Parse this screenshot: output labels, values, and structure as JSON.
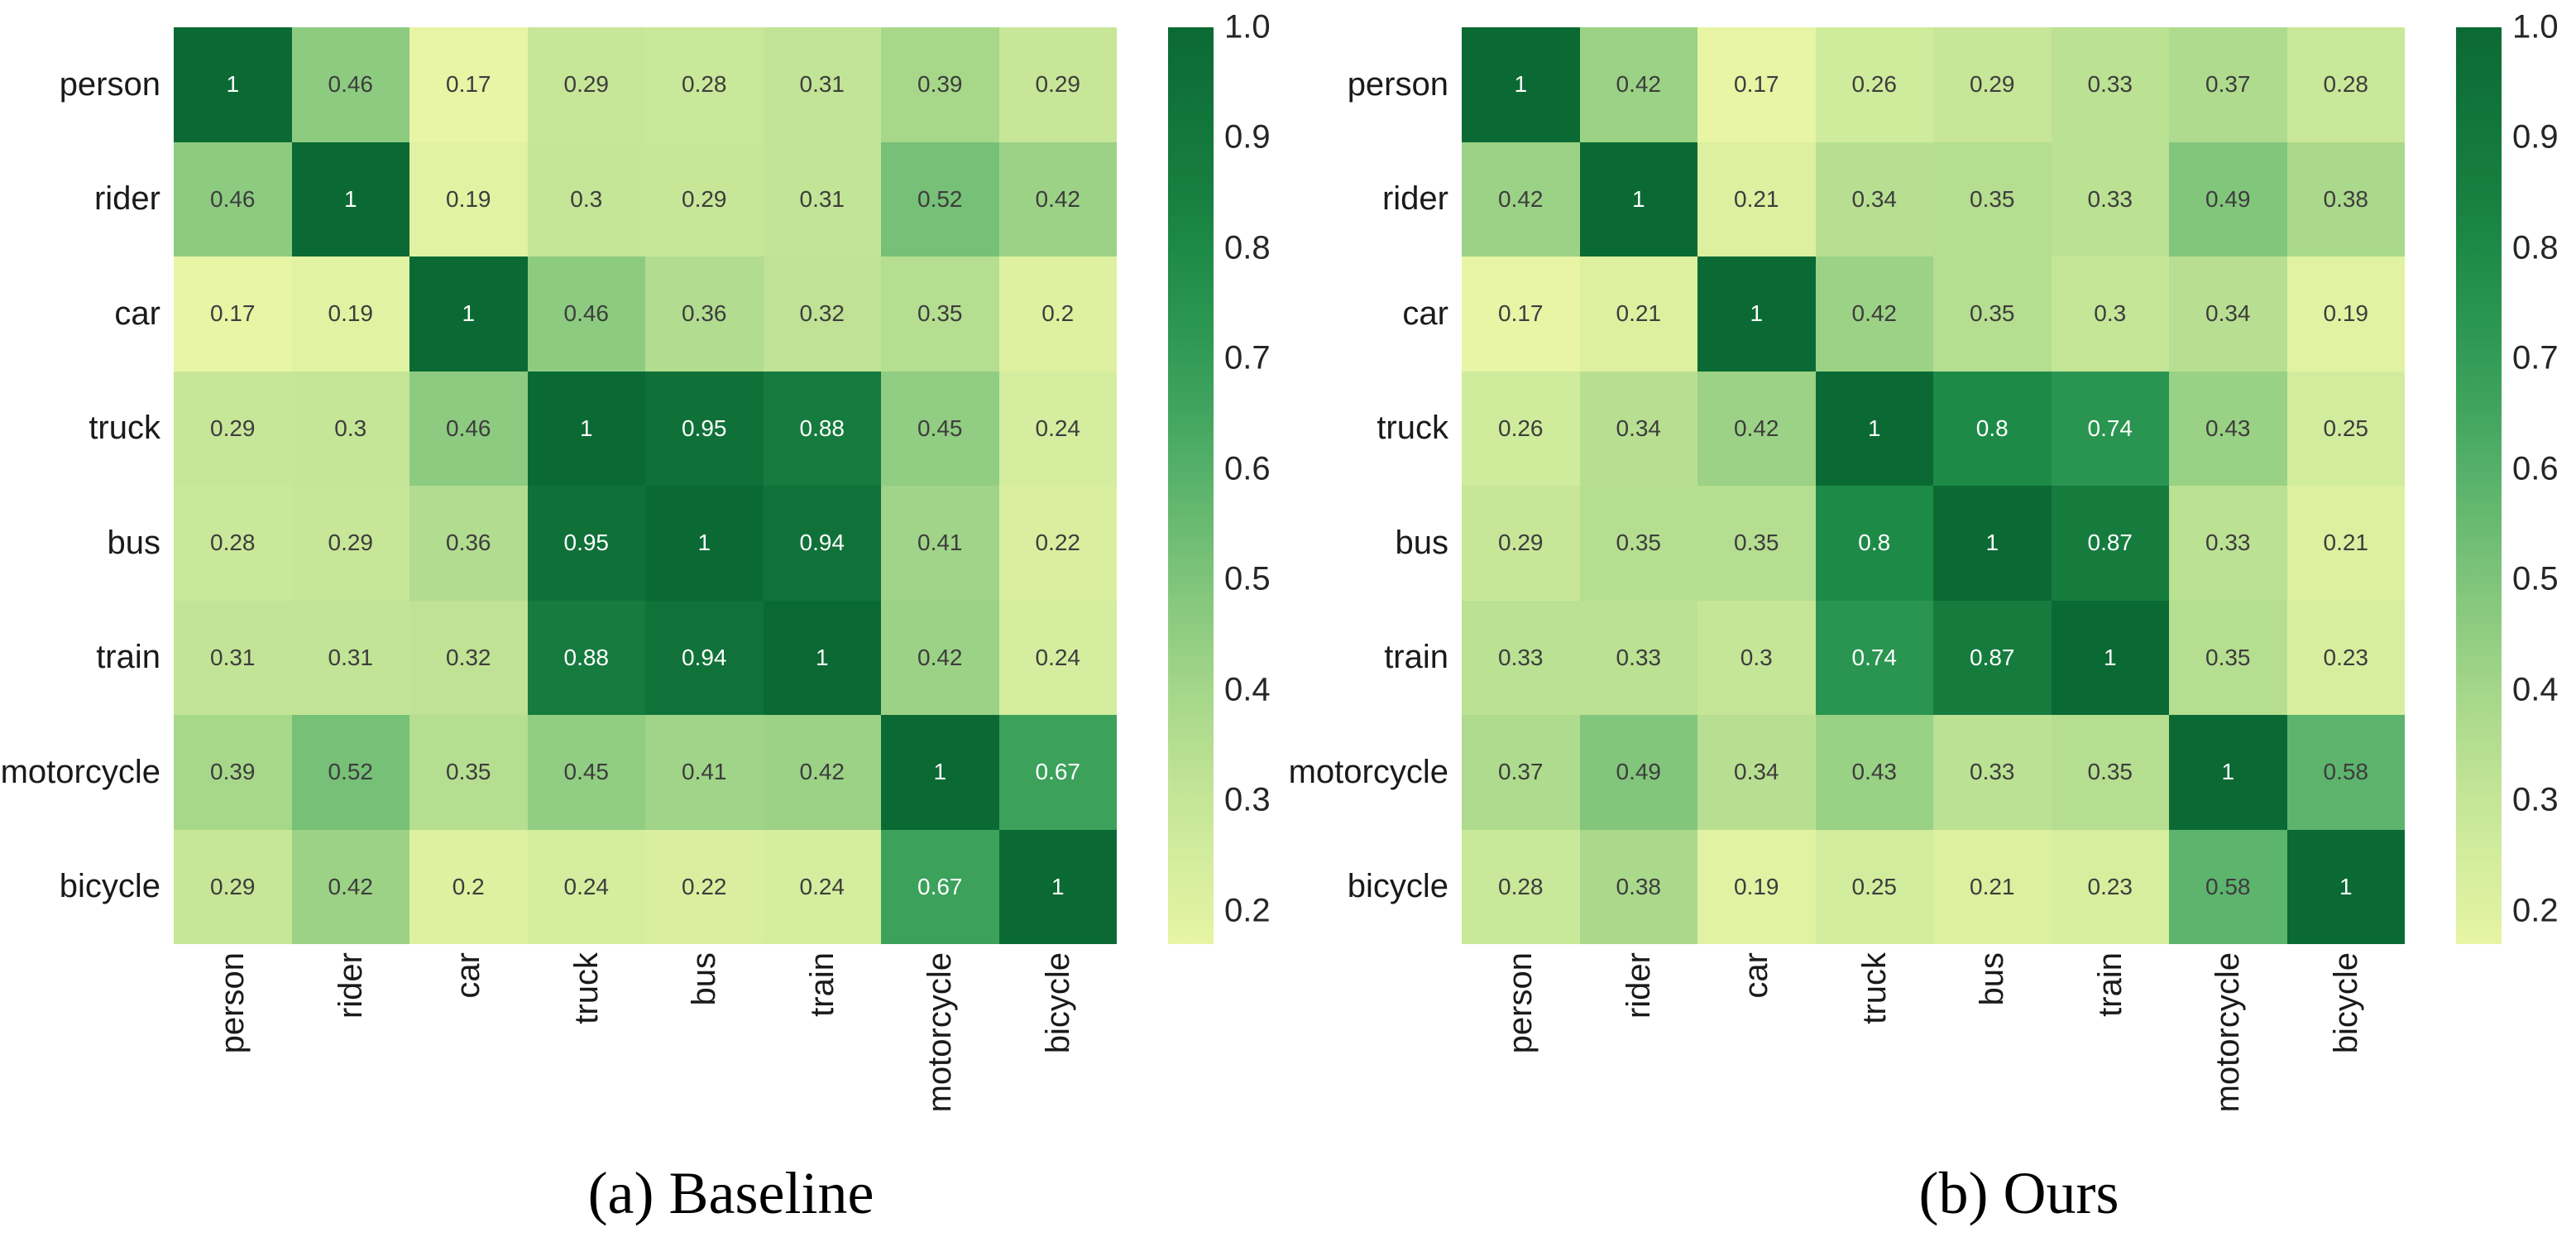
{
  "figure": {
    "description": "Two side-by-side class-correlation heatmaps comparing a baseline model and ours",
    "background": "#ffffff"
  },
  "style": {
    "cell_text_dark": "#3d3d3d",
    "cell_text_light": "#ffffff",
    "axis_label_color": "#1a1a1a",
    "white_text_threshold": 0.62,
    "colormap_stops": [
      [
        0.17,
        "#e7f5a5"
      ],
      [
        0.2,
        "#def1a0"
      ],
      [
        0.25,
        "#d2ec9d"
      ],
      [
        0.3,
        "#c5e597"
      ],
      [
        0.35,
        "#b5de90"
      ],
      [
        0.4,
        "#a4d689"
      ],
      [
        0.45,
        "#91cd82"
      ],
      [
        0.5,
        "#7ec47b"
      ],
      [
        0.55,
        "#6aba72"
      ],
      [
        0.6,
        "#55b069"
      ],
      [
        0.65,
        "#42a55f"
      ],
      [
        0.7,
        "#339c56"
      ],
      [
        0.75,
        "#27934e"
      ],
      [
        0.8,
        "#1e8a47"
      ],
      [
        0.85,
        "#177f40"
      ],
      [
        0.9,
        "#13783c"
      ],
      [
        0.95,
        "#0f7138"
      ],
      [
        1.0,
        "#0b6a33"
      ]
    ]
  },
  "chart_data": [
    {
      "type": "heatmap",
      "title": "(a) Baseline",
      "colormap": "yellow-green (YlGn-like)",
      "categories": [
        "person",
        "rider",
        "car",
        "truck",
        "bus",
        "train",
        "motorcycle",
        "bicycle"
      ],
      "matrix": [
        [
          1,
          0.46,
          0.17,
          0.29,
          0.28,
          0.31,
          0.39,
          0.29
        ],
        [
          0.46,
          1,
          0.19,
          0.3,
          0.29,
          0.31,
          0.52,
          0.42
        ],
        [
          0.17,
          0.19,
          1,
          0.46,
          0.36,
          0.32,
          0.35,
          0.2
        ],
        [
          0.29,
          0.3,
          0.46,
          1,
          0.95,
          0.88,
          0.45,
          0.24
        ],
        [
          0.28,
          0.29,
          0.36,
          0.95,
          1,
          0.94,
          0.41,
          0.22
        ],
        [
          0.31,
          0.31,
          0.32,
          0.88,
          0.94,
          1,
          0.42,
          0.24
        ],
        [
          0.39,
          0.52,
          0.35,
          0.45,
          0.41,
          0.42,
          1,
          0.67
        ],
        [
          0.29,
          0.42,
          0.2,
          0.24,
          0.22,
          0.24,
          0.67,
          1
        ]
      ],
      "vmin": 0.17,
      "vmax": 1.0,
      "colorbar_ticks": [
        "1.0",
        "0.9",
        "0.8",
        "0.7",
        "0.6",
        "0.5",
        "0.4",
        "0.3",
        "0.2"
      ],
      "colorbar_position": "right",
      "grid": false
    },
    {
      "type": "heatmap",
      "title": "(b) Ours",
      "colormap": "yellow-green (YlGn-like)",
      "categories": [
        "person",
        "rider",
        "car",
        "truck",
        "bus",
        "train",
        "motorcycle",
        "bicycle"
      ],
      "matrix": [
        [
          1,
          0.42,
          0.17,
          0.26,
          0.29,
          0.33,
          0.37,
          0.28
        ],
        [
          0.42,
          1,
          0.21,
          0.34,
          0.35,
          0.33,
          0.49,
          0.38
        ],
        [
          0.17,
          0.21,
          1,
          0.42,
          0.35,
          0.3,
          0.34,
          0.19
        ],
        [
          0.26,
          0.34,
          0.42,
          1,
          0.8,
          0.74,
          0.43,
          0.25
        ],
        [
          0.29,
          0.35,
          0.35,
          0.8,
          1,
          0.87,
          0.33,
          0.21
        ],
        [
          0.33,
          0.33,
          0.3,
          0.74,
          0.87,
          1,
          0.35,
          0.23
        ],
        [
          0.37,
          0.49,
          0.34,
          0.43,
          0.33,
          0.35,
          1,
          0.58
        ],
        [
          0.28,
          0.38,
          0.19,
          0.25,
          0.21,
          0.23,
          0.58,
          1
        ]
      ],
      "vmin": 0.17,
      "vmax": 1.0,
      "colorbar_ticks": [
        "1.0",
        "0.9",
        "0.8",
        "0.7",
        "0.6",
        "0.5",
        "0.4",
        "0.3",
        "0.2"
      ],
      "colorbar_position": "right",
      "grid": false
    }
  ]
}
